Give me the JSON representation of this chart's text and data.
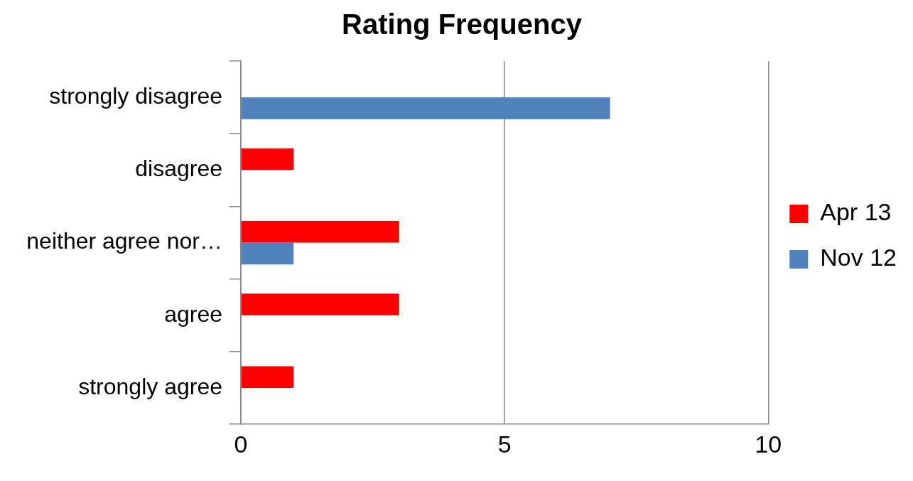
{
  "chart_data": {
    "type": "bar",
    "title": "Rating Frequency",
    "orientation": "horizontal",
    "categories": [
      "strongly disagree",
      "disagree",
      "neither agree nor…",
      "agree",
      "strongly agree"
    ],
    "series": [
      {
        "name": "Apr 13",
        "color": "#ff0000",
        "values": [
          null,
          1,
          3,
          3,
          1
        ]
      },
      {
        "name": "Nov 12",
        "color": "#4f81bd",
        "values": [
          7,
          null,
          1,
          null,
          null
        ]
      }
    ],
    "xlim": [
      0,
      10
    ],
    "xticks": [
      0,
      5,
      10
    ],
    "grid": "x",
    "legend": "right"
  }
}
